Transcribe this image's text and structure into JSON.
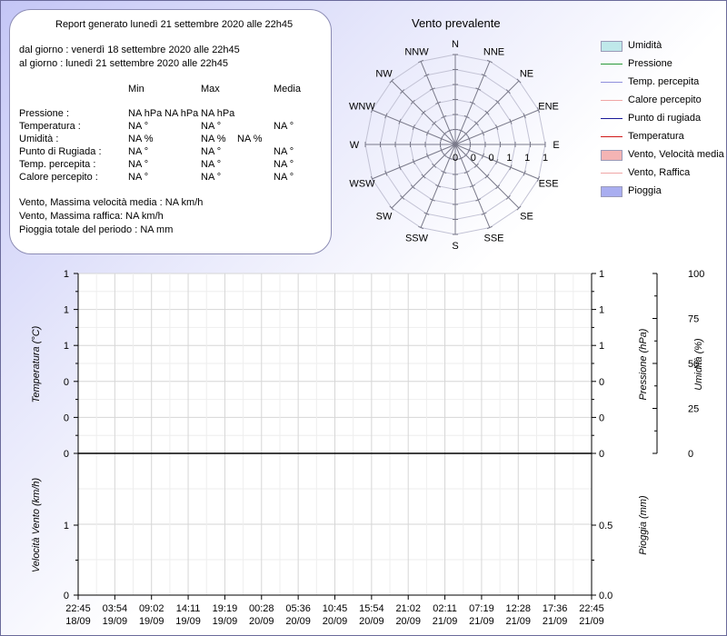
{
  "report": {
    "title": "Report generato lunedì 21 settembre 2020 alle 22h45",
    "from": "dal giorno : venerdì 18 settembre 2020 alle 22h45",
    "to": "al giorno : lunedì 21 settembre 2020 alle 22h45",
    "headers": [
      "Min",
      "Max",
      "Media"
    ],
    "rows": [
      {
        "label": "Pressione :",
        "min": "NA hPa",
        "max": "NA hPa",
        "avg": "NA hPa"
      },
      {
        "label": "Temperatura :",
        "min": "NA °",
        "max": "NA °",
        "avg": "NA °"
      },
      {
        "label": "Umidità :",
        "min": "NA %",
        "max": "NA %",
        "avg": "NA %"
      },
      {
        "label": "Punto di Rugiada :",
        "min": "NA °",
        "max": "NA °",
        "avg": "NA °"
      },
      {
        "label": "Temp. percepita :",
        "min": "NA °",
        "max": "NA °",
        "avg": "NA °"
      },
      {
        "label": "Calore percepito :",
        "min": "NA °",
        "max": "NA °",
        "avg": "NA °"
      }
    ],
    "wind_max_avg": "Vento, Massima velocità media : NA km/h",
    "wind_gust": "Vento, Massima raffica: NA km/h",
    "rain_total": "Pioggia totale del periodo : NA mm"
  },
  "legend": [
    {
      "label": "Umidità",
      "kind": "box",
      "color": "#bfe8ea"
    },
    {
      "label": "Pressione",
      "kind": "line",
      "color": "#2a9a3a"
    },
    {
      "label": "Temp. percepita",
      "kind": "line",
      "color": "#8f8fdc"
    },
    {
      "label": "Calore percepito",
      "kind": "line",
      "color": "#f0a6a6"
    },
    {
      "label": "Punto di rugiada",
      "kind": "line",
      "color": "#1a1a9a"
    },
    {
      "label": "Temperatura",
      "kind": "line",
      "color": "#d01818"
    },
    {
      "label": "Vento, Velocità media",
      "kind": "box",
      "color": "#f4b4b4"
    },
    {
      "label": "Vento, Raffica",
      "kind": "line",
      "color": "#f0a6a6"
    },
    {
      "label": "Pioggia",
      "kind": "box",
      "color": "#a9aef0"
    }
  ],
  "chart_data": [
    {
      "type": "radar",
      "title": "Vento prevalente",
      "directions": [
        "N",
        "NNE",
        "NE",
        "ENE",
        "E",
        "ESE",
        "SE",
        "SSE",
        "S",
        "SSW",
        "SW",
        "WSW",
        "W",
        "WNW",
        "NW",
        "NNW"
      ],
      "values": [
        0,
        0,
        0,
        0,
        0,
        0,
        0,
        0,
        0,
        0,
        0,
        0,
        0,
        0,
        0,
        0
      ],
      "radial_ticks": [
        "0",
        "0",
        "0",
        "1",
        "1",
        "1"
      ]
    },
    {
      "type": "line",
      "x": [
        "22:45\n18/09",
        "03:54\n19/09",
        "09:02\n19/09",
        "14:11\n19/09",
        "19:19\n19/09",
        "00:28\n20/09",
        "05:36\n20/09",
        "10:45\n20/09",
        "15:54\n20/09",
        "21:02\n20/09",
        "02:11\n21/09",
        "07:19\n21/09",
        "12:28\n21/09",
        "17:36\n21/09",
        "22:45\n21/09"
      ],
      "left_ylabel": "Temperatura (°C)",
      "left_ticks": [
        "1",
        "1",
        "1",
        "0",
        "0",
        "0"
      ],
      "right_ylabel": "Pressione (hPa)",
      "right_ticks": [
        "1",
        "1",
        "1",
        "0",
        "0",
        "0"
      ],
      "right2_ylabel": "Umidità (%)",
      "right2_ticks": [
        "100",
        "75",
        "50",
        "25",
        "0"
      ],
      "series": [],
      "grid": true
    },
    {
      "type": "line",
      "x": [
        "22:45\n18/09",
        "03:54\n19/09",
        "09:02\n19/09",
        "14:11\n19/09",
        "19:19\n19/09",
        "00:28\n20/09",
        "05:36\n20/09",
        "10:45\n20/09",
        "15:54\n20/09",
        "21:02\n20/09",
        "02:11\n21/09",
        "07:19\n21/09",
        "12:28\n21/09",
        "17:36\n21/09",
        "22:45\n21/09"
      ],
      "left_ylabel": "Velocità Vento (km/h)",
      "left_ticks": [
        "1",
        "0"
      ],
      "right_ylabel": "Pioggia (mm)",
      "right_ticks": [
        "0.5",
        "0.0"
      ],
      "series": [],
      "grid": true
    }
  ]
}
